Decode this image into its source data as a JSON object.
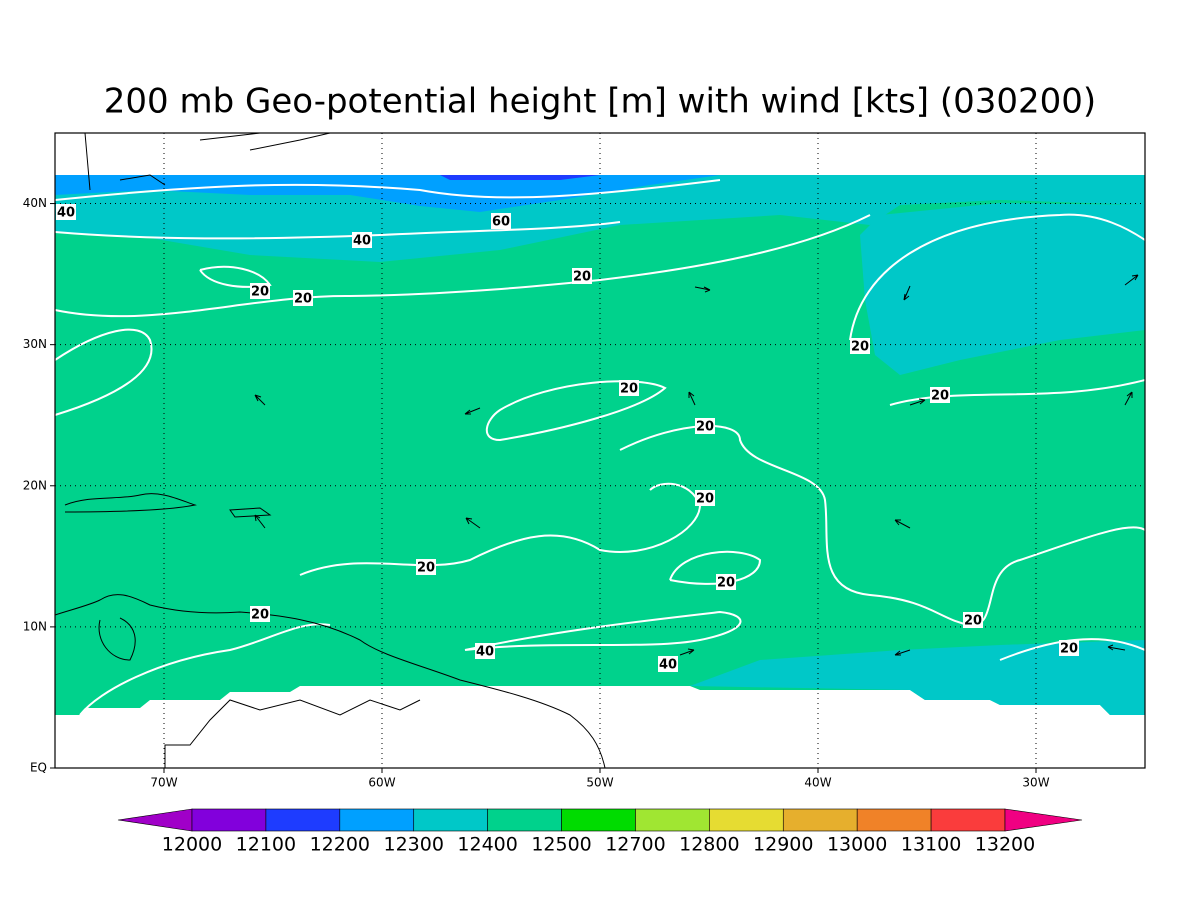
{
  "chart_data": {
    "type": "map",
    "title": "200 mb Geo-potential height [m] with wind [kts] (030200)",
    "xlim": [
      -75,
      -25
    ],
    "ylim": [
      0,
      45
    ],
    "xticks": [
      {
        "value": -70,
        "label": "70W"
      },
      {
        "value": -60,
        "label": "60W"
      },
      {
        "value": -50,
        "label": "50W"
      },
      {
        "value": -40,
        "label": "40W"
      },
      {
        "value": -30,
        "label": "30W"
      }
    ],
    "yticks": [
      {
        "value": 0,
        "label": "EQ"
      },
      {
        "value": 10,
        "label": "10N"
      },
      {
        "value": 20,
        "label": "20N"
      },
      {
        "value": 30,
        "label": "30N"
      },
      {
        "value": 40,
        "label": "40N"
      }
    ],
    "grid": true,
    "contour_labels": [
      40,
      60,
      40,
      20,
      20,
      20,
      20,
      20,
      20,
      20,
      20,
      20,
      20,
      20,
      20,
      20,
      40,
      40
    ],
    "colorbar": {
      "levels": [
        12000,
        12100,
        12200,
        12300,
        12400,
        12500,
        12700,
        12800,
        12900,
        13000,
        13100,
        13200
      ],
      "colors": [
        "#a000c8",
        "#8200dc",
        "#1e3cff",
        "#00a0ff",
        "#00c8c8",
        "#00d28c",
        "#00dc00",
        "#a0e632",
        "#e6dc32",
        "#e6af2d",
        "#f08228",
        "#fa3c3c",
        "#f00082"
      ]
    }
  }
}
